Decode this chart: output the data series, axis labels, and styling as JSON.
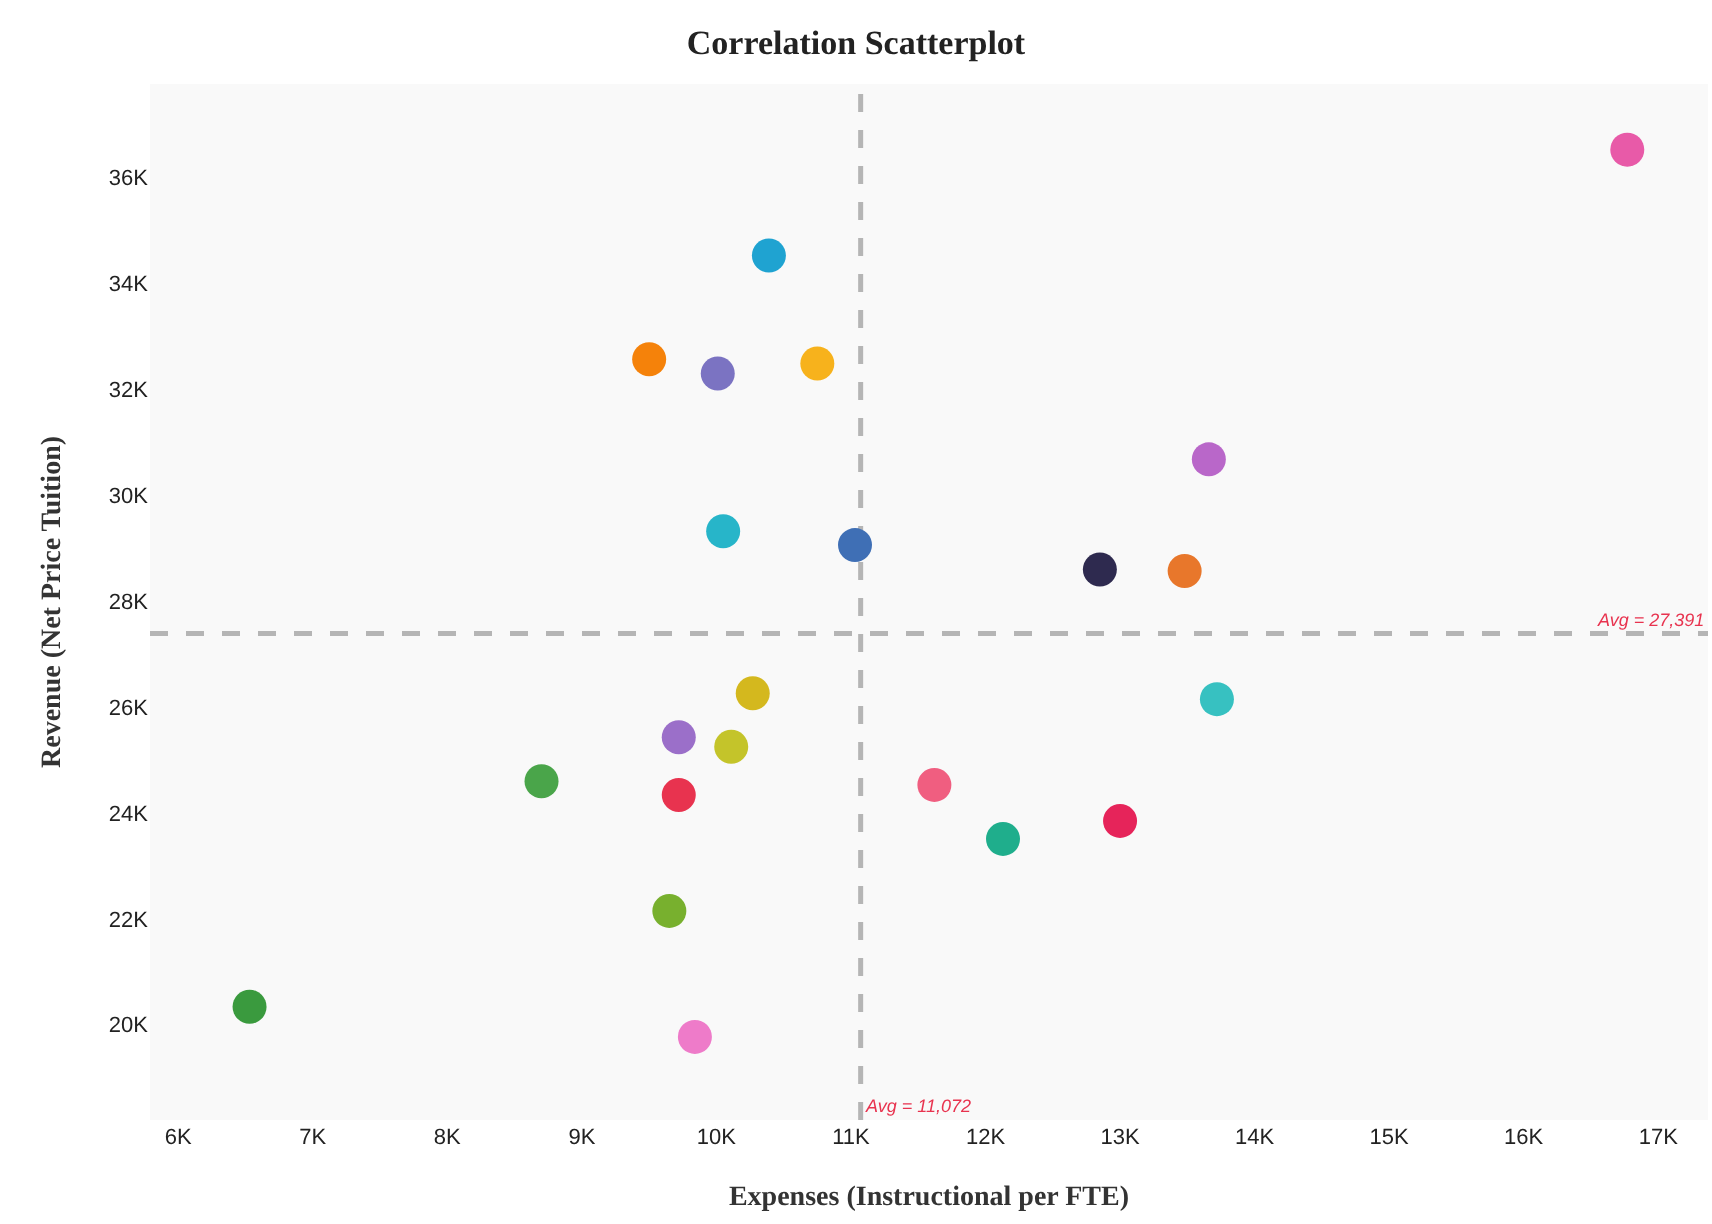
{
  "chart_data": {
    "type": "scatter",
    "title": "Correlation Scatterplot",
    "xlabel": "Expenses (Instructional per FTE)",
    "ylabel": "Revenue (Net Price Tuition)",
    "x": [
      16770,
      10390,
      9500,
      10010,
      10750,
      13660,
      10050,
      11030,
      12850,
      13480,
      13720,
      10270,
      9720,
      10110,
      8700,
      9720,
      11620,
      13000,
      12130,
      9650,
      6530,
      9840
    ],
    "values": [
      36530,
      34530,
      32570,
      32300,
      32490,
      30680,
      29320,
      29060,
      28600,
      28570,
      26150,
      26260,
      25430,
      25250,
      24600,
      24340,
      24530,
      23850,
      23510,
      22150,
      20340,
      19770
    ],
    "colors": [
      "#e85aa8",
      "#1fa3d1",
      "#f5820a",
      "#7b73c2",
      "#f7b21c",
      "#b967c9",
      "#27b5c9",
      "#3f6fb5",
      "#2e2a4f",
      "#e8772b",
      "#37c1c1",
      "#d4b81e",
      "#9b6fc9",
      "#c4c42a",
      "#4aa54a",
      "#e8334f",
      "#f05e80",
      "#e6245a",
      "#1fae8c",
      "#78b02e",
      "#3a9a3e",
      "#ee7bc9"
    ],
    "marker": "circle",
    "grid": false,
    "xlim": [
      5790,
      17370
    ],
    "ylim": [
      18200,
      37770
    ],
    "xticks": [
      {
        "value": 6000,
        "label": "6K"
      },
      {
        "value": 7000,
        "label": "7K"
      },
      {
        "value": 8000,
        "label": "8K"
      },
      {
        "value": 9000,
        "label": "9K"
      },
      {
        "value": 10000,
        "label": "10K"
      },
      {
        "value": 11000,
        "label": "11K"
      },
      {
        "value": 12000,
        "label": "12K"
      },
      {
        "value": 13000,
        "label": "13K"
      },
      {
        "value": 14000,
        "label": "14K"
      },
      {
        "value": 15000,
        "label": "15K"
      },
      {
        "value": 16000,
        "label": "16K"
      },
      {
        "value": 17000,
        "label": "17K"
      }
    ],
    "yticks": [
      {
        "value": 20000,
        "label": "20K"
      },
      {
        "value": 22000,
        "label": "22K"
      },
      {
        "value": 24000,
        "label": "24K"
      },
      {
        "value": 26000,
        "label": "26K"
      },
      {
        "value": 28000,
        "label": "28K"
      },
      {
        "value": 30000,
        "label": "30K"
      },
      {
        "value": 32000,
        "label": "32K"
      },
      {
        "value": 34000,
        "label": "34K"
      },
      {
        "value": 36000,
        "label": "36K"
      }
    ],
    "ref_lines": [
      {
        "axis": "x",
        "value": 11072,
        "label": "Avg = 11,072",
        "color": "#b5b5b5",
        "line_style": "dashed"
      },
      {
        "axis": "y",
        "value": 27391,
        "label": "Avg = 27,391",
        "color": "#b5b5b5",
        "line_style": "dashed"
      }
    ]
  }
}
